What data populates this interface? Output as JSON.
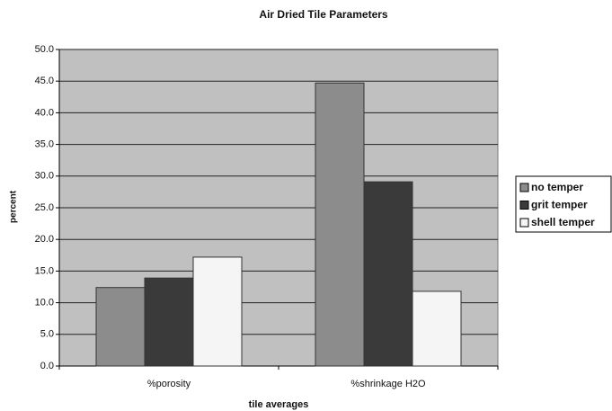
{
  "chart_data": {
    "type": "bar",
    "title": "Air Dried Tile Parameters",
    "x_label": "tile averages",
    "y_label": "percent",
    "categories": [
      "%porosity",
      "%shrinkage H2O"
    ],
    "series": [
      {
        "name": "no temper",
        "color": "#8c8c8c",
        "values": [
          12.4,
          44.7
        ]
      },
      {
        "name": "grit temper",
        "color": "#3a3a3a",
        "values": [
          13.9,
          29.1
        ]
      },
      {
        "name": "shell temper",
        "color": "#f5f5f5",
        "values": [
          17.2,
          11.8
        ]
      }
    ],
    "ylim": [
      0,
      50
    ],
    "yticks": [
      {
        "value": 0,
        "label": "0.0"
      },
      {
        "value": 5,
        "label": "5.0"
      },
      {
        "value": 10,
        "label": "10.0"
      },
      {
        "value": 15,
        "label": "15.0"
      },
      {
        "value": 20,
        "label": "20.0"
      },
      {
        "value": 25,
        "label": "25.0"
      },
      {
        "value": 30,
        "label": "30.0"
      },
      {
        "value": 35,
        "label": "35.0"
      },
      {
        "value": 40,
        "label": "40.0"
      },
      {
        "value": 45,
        "label": "45.0"
      },
      {
        "value": 50,
        "label": "50.0"
      }
    ],
    "grid": true,
    "legend": "right"
  }
}
